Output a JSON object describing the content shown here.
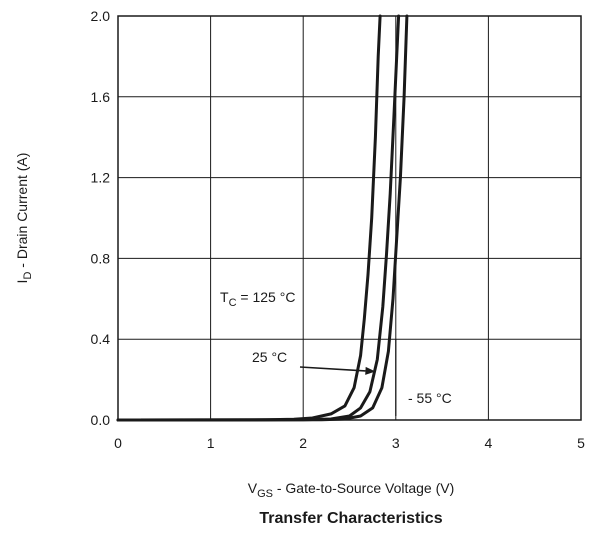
{
  "chart_data": {
    "type": "line",
    "title": "Transfer Characteristics",
    "xlabel": {
      "main": "V",
      "sub": "GS",
      "rest": " - Gate-to-Source Voltage (V)"
    },
    "ylabel": {
      "main": "I",
      "sub": "D",
      "rest": " - Drain Current (A)"
    },
    "xlim": [
      0,
      5
    ],
    "ylim": [
      0,
      2.0
    ],
    "x_ticks": [
      "0",
      "1",
      "2",
      "3",
      "4",
      "5"
    ],
    "y_ticks": [
      "0.0",
      "0.4",
      "0.8",
      "1.2",
      "1.6",
      "2.0"
    ],
    "grid": true,
    "series": [
      {
        "points": [
          [
            0,
            0
          ],
          [
            1.6,
            0.001
          ],
          [
            1.9,
            0.004
          ],
          [
            2.1,
            0.01
          ],
          [
            2.3,
            0.03
          ],
          [
            2.45,
            0.07
          ],
          [
            2.55,
            0.16
          ],
          [
            2.62,
            0.32
          ],
          [
            2.66,
            0.5
          ],
          [
            2.7,
            0.72
          ],
          [
            2.74,
            1.0
          ],
          [
            2.78,
            1.4
          ],
          [
            2.81,
            1.8
          ],
          [
            2.83,
            2.0
          ]
        ]
      },
      {
        "points": [
          [
            0,
            0
          ],
          [
            2.0,
            0.001
          ],
          [
            2.3,
            0.005
          ],
          [
            2.5,
            0.02
          ],
          [
            2.62,
            0.06
          ],
          [
            2.72,
            0.14
          ],
          [
            2.8,
            0.3
          ],
          [
            2.86,
            0.56
          ],
          [
            2.9,
            0.82
          ],
          [
            2.94,
            1.12
          ],
          [
            2.98,
            1.5
          ],
          [
            3.01,
            1.8
          ],
          [
            3.03,
            2.0
          ]
        ]
      },
      {
        "points": [
          [
            0,
            0
          ],
          [
            2.2,
            0.001
          ],
          [
            2.45,
            0.005
          ],
          [
            2.62,
            0.02
          ],
          [
            2.75,
            0.06
          ],
          [
            2.85,
            0.16
          ],
          [
            2.92,
            0.34
          ],
          [
            2.97,
            0.6
          ],
          [
            3.01,
            0.9
          ],
          [
            3.05,
            1.2
          ],
          [
            3.09,
            1.6
          ],
          [
            3.12,
            2.0
          ]
        ]
      }
    ],
    "annotations": [
      {
        "main": "T",
        "sub": "C",
        "rest": " = 125 °C"
      },
      {
        "text": "25 °C"
      },
      {
        "text": "- 55 °C"
      }
    ]
  }
}
